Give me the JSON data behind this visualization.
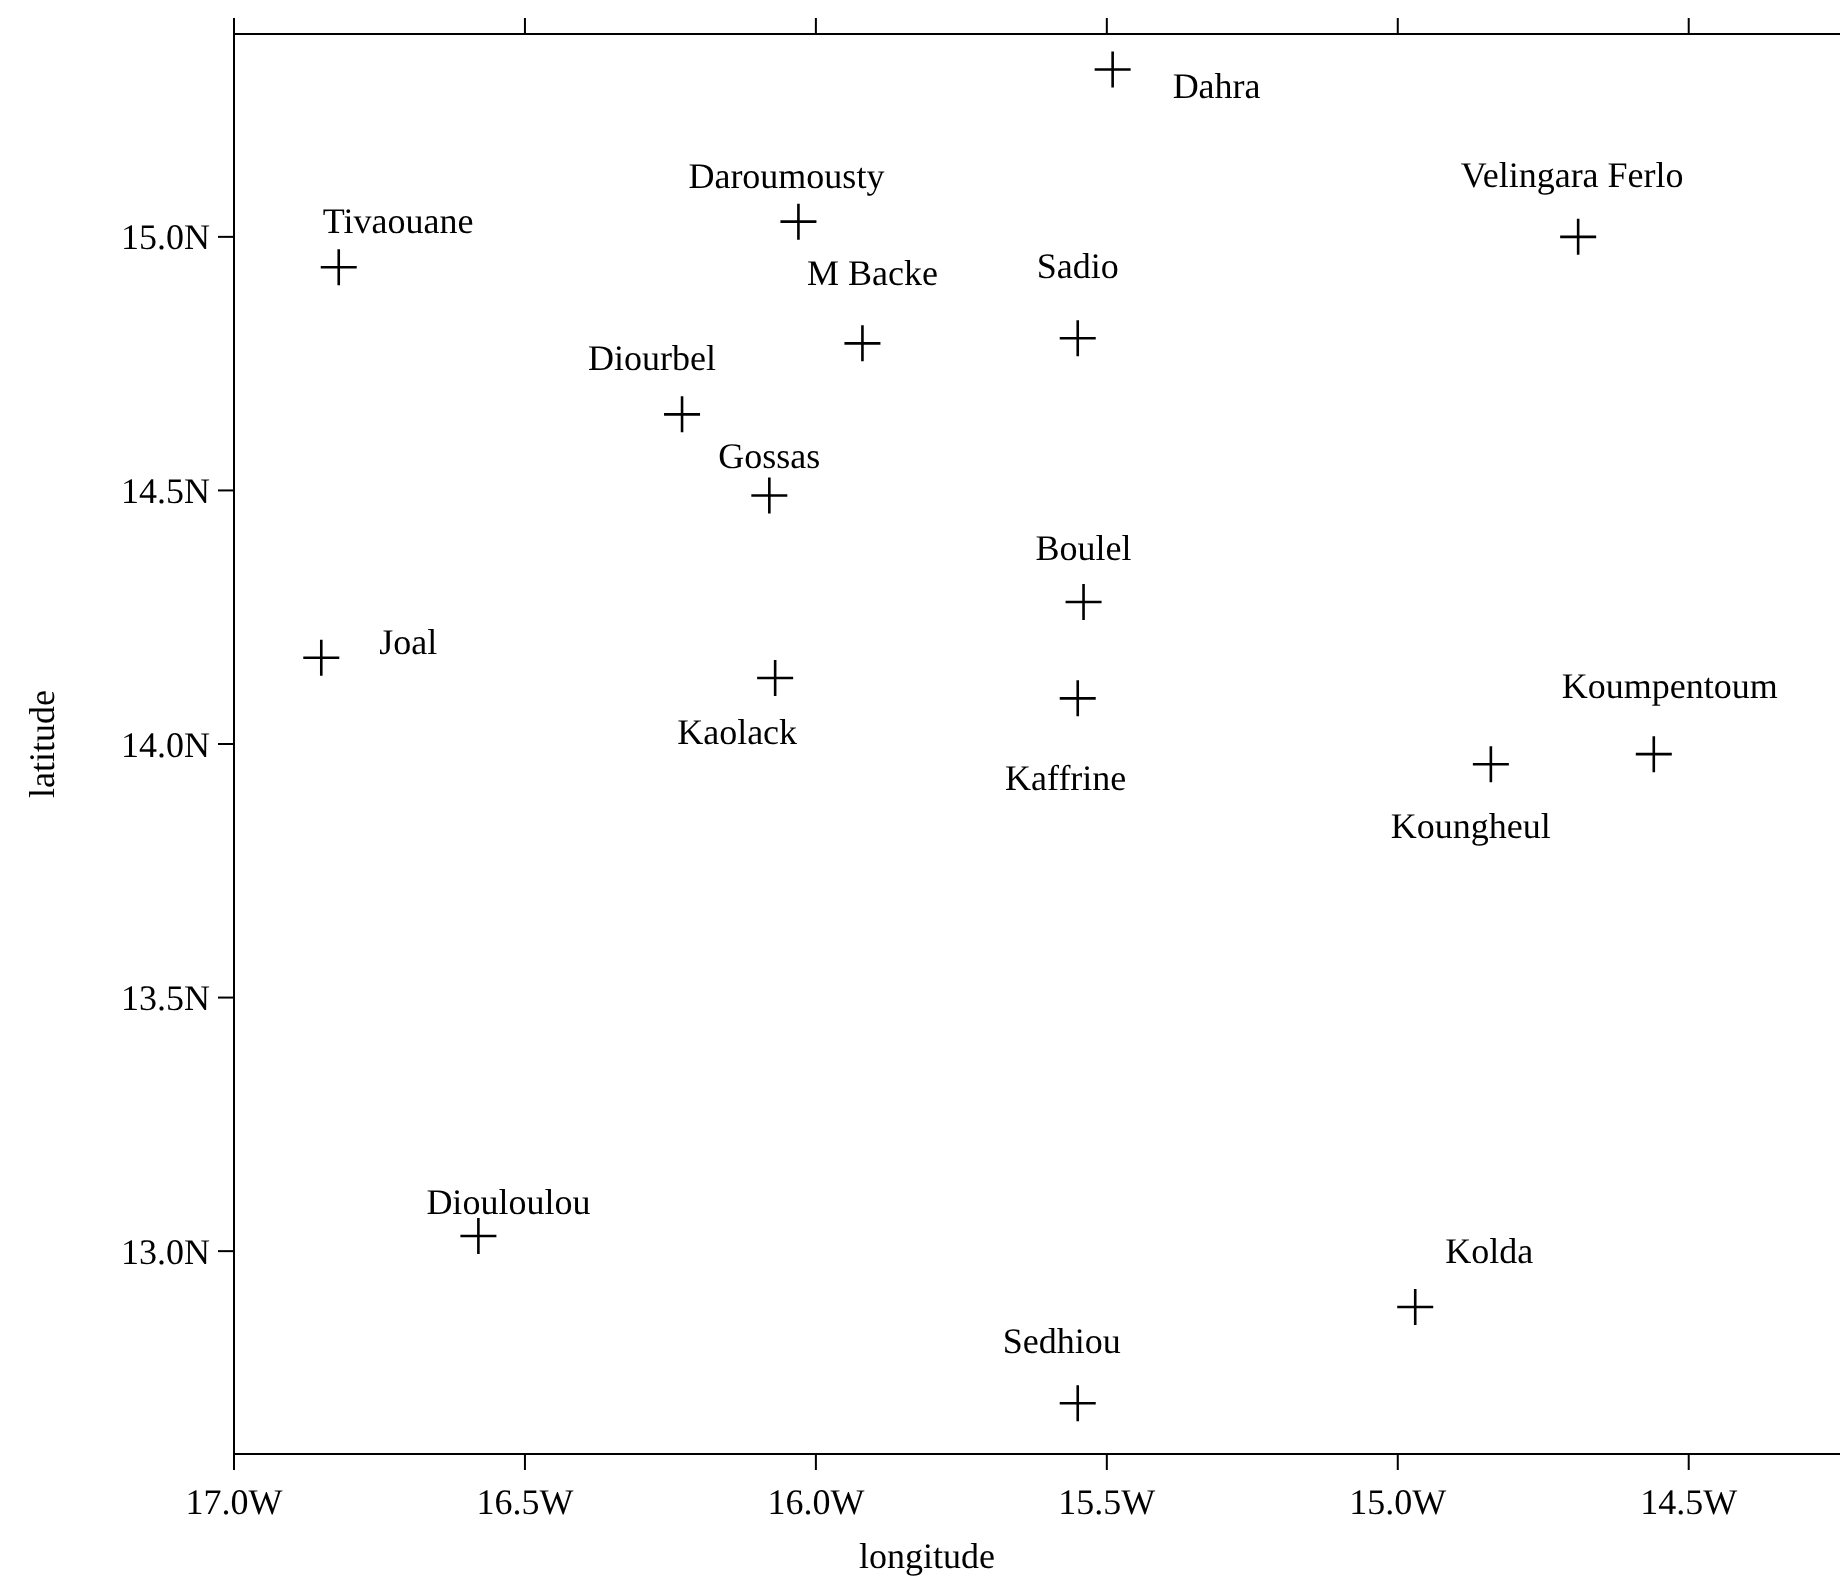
{
  "chart_data": {
    "type": "scatter",
    "xlabel": "longitude",
    "ylabel": "latitude",
    "marker": "cross",
    "xlim": [
      -17.0,
      -14.24
    ],
    "ylim": [
      12.6,
      15.4
    ],
    "xticks": [
      {
        "value": -17,
        "label": "17.0W"
      },
      {
        "value": -16.5,
        "label": "16.5W"
      },
      {
        "value": -16,
        "label": "16.0W"
      },
      {
        "value": -15.5,
        "label": "15.5W"
      },
      {
        "value": -15,
        "label": "15.0W"
      },
      {
        "value": -14.5,
        "label": "14.5W"
      }
    ],
    "yticks": [
      {
        "value": 13,
        "label": "13.0N"
      },
      {
        "value": 13.5,
        "label": "13.5N"
      },
      {
        "value": 14,
        "label": "14.0N"
      },
      {
        "value": 14.5,
        "label": "14.5N"
      },
      {
        "value": 15,
        "label": "15.0N"
      }
    ],
    "series": [
      {
        "color": "#000000",
        "x": [
          -15.49,
          -16.03,
          -16.82,
          -14.69,
          -15.92,
          -15.55,
          -16.23,
          -16.08,
          -15.54,
          -16.85,
          -16.07,
          -15.55,
          -14.56,
          -14.84,
          -16.58,
          -14.97,
          -15.55
        ],
        "values": [
          15.33,
          15.03,
          14.94,
          15.0,
          14.79,
          14.8,
          14.65,
          14.49,
          14.28,
          14.17,
          14.13,
          14.09,
          13.98,
          13.96,
          13.03,
          12.89,
          12.7
        ]
      }
    ],
    "annotations": [
      {
        "text": "Dahra",
        "x": -15.49,
        "y": 15.33
      },
      {
        "text": "Daroumousty",
        "x": -16.03,
        "y": 15.03
      },
      {
        "text": "Tivaouane",
        "x": -16.82,
        "y": 14.94
      },
      {
        "text": "Velingara Ferlo",
        "x": -14.69,
        "y": 15.0
      },
      {
        "text": "M Backe",
        "x": -15.92,
        "y": 14.79
      },
      {
        "text": "Sadio",
        "x": -15.55,
        "y": 14.8
      },
      {
        "text": "Diourbel",
        "x": -16.23,
        "y": 14.65
      },
      {
        "text": "Gossas",
        "x": -16.08,
        "y": 14.49
      },
      {
        "text": "Boulel",
        "x": -15.54,
        "y": 14.28
      },
      {
        "text": "Joal",
        "x": -16.85,
        "y": 14.17
      },
      {
        "text": "Kaolack",
        "x": -16.07,
        "y": 14.13
      },
      {
        "text": "Kaffrine",
        "x": -15.55,
        "y": 14.09
      },
      {
        "text": "Koumpentoum",
        "x": -14.56,
        "y": 13.98
      },
      {
        "text": "Koungheul",
        "x": -14.84,
        "y": 13.96
      },
      {
        "text": "Diouloulou",
        "x": -16.58,
        "y": 13.03
      },
      {
        "text": "Kolda",
        "x": -14.97,
        "y": 12.89
      },
      {
        "text": "Sedhiou",
        "x": -15.55,
        "y": 12.7
      }
    ]
  }
}
